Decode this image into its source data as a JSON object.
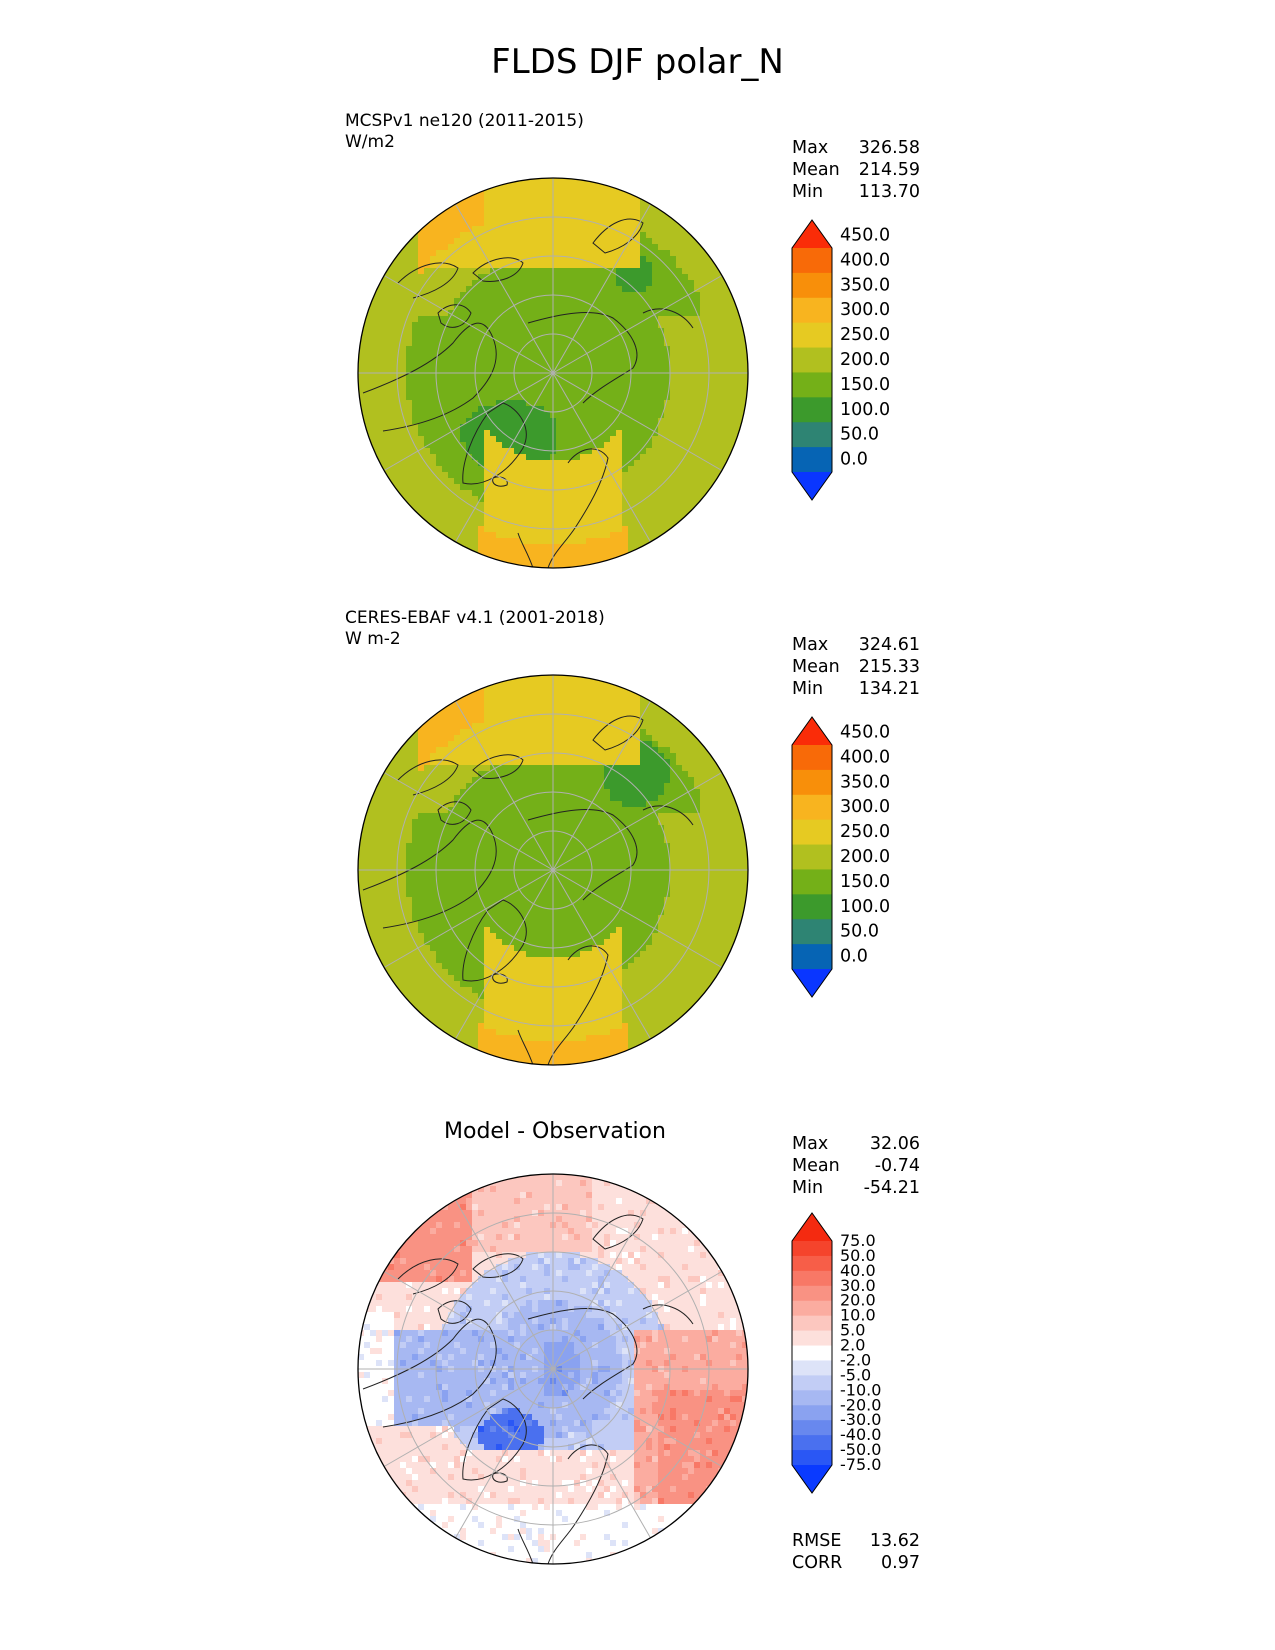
{
  "title": "FLDS DJF polar_N",
  "panels": [
    {
      "id": "test",
      "label": "MCSPv1 ne120 (2011-2015)",
      "units": "W/m2",
      "stats": {
        "max_label": "Max",
        "max": "326.58",
        "mean_label": "Mean",
        "mean": "214.59",
        "min_label": "Min",
        "min": "113.70"
      }
    },
    {
      "id": "ref",
      "label": "CERES-EBAF v4.1 (2001-2018)",
      "units": "W m-2",
      "stats": {
        "max_label": "Max",
        "max": "324.61",
        "mean_label": "Mean",
        "mean": "215.33",
        "min_label": "Min",
        "min": "134.21"
      }
    },
    {
      "id": "diff",
      "label": "Model - Observation",
      "stats": {
        "max_label": "Max",
        "max": "32.06",
        "mean_label": "Mean",
        "mean": "-0.74",
        "min_label": "Min",
        "min": "-54.21"
      },
      "metrics": {
        "rmse_label": "RMSE",
        "rmse": "13.62",
        "corr_label": "CORR",
        "corr": "0.97"
      }
    }
  ],
  "chart_data": [
    {
      "type": "heatmap",
      "projection": "north polar stereographic",
      "panel": "MCSPv1 ne120 (2011-2015)",
      "units": "W/m2",
      "colorbar": {
        "levels": [
          "0.0",
          "50.0",
          "100.0",
          "150.0",
          "200.0",
          "250.0",
          "300.0",
          "350.0",
          "400.0",
          "450.0"
        ],
        "colors": [
          "#0a36ff",
          "#0664b4",
          "#2e8473",
          "#3c9a2c",
          "#74b018",
          "#b1c01f",
          "#e6ca22",
          "#f8b41f",
          "#f88f0a",
          "#f86a08",
          "#fa2c08"
        ],
        "extend": "both"
      },
      "stats": {
        "max": 326.58,
        "mean": 214.59,
        "min": 113.7
      }
    },
    {
      "type": "heatmap",
      "projection": "north polar stereographic",
      "panel": "CERES-EBAF v4.1 (2001-2018)",
      "units": "W m-2",
      "colorbar": {
        "levels": [
          "0.0",
          "50.0",
          "100.0",
          "150.0",
          "200.0",
          "250.0",
          "300.0",
          "350.0",
          "400.0",
          "450.0"
        ],
        "colors": [
          "#0a36ff",
          "#0664b4",
          "#2e8473",
          "#3c9a2c",
          "#74b018",
          "#b1c01f",
          "#e6ca22",
          "#f8b41f",
          "#f88f0a",
          "#f86a08",
          "#fa2c08"
        ],
        "extend": "both"
      },
      "stats": {
        "max": 324.61,
        "mean": 215.33,
        "min": 134.21
      }
    },
    {
      "type": "heatmap",
      "projection": "north polar stereographic",
      "panel": "Model - Observation",
      "colorbar": {
        "levels": [
          "-75.0",
          "-50.0",
          "-40.0",
          "-30.0",
          "-20.0",
          "-10.0",
          "-5.0",
          "-2.0",
          "2.0",
          "5.0",
          "10.0",
          "20.0",
          "30.0",
          "40.0",
          "50.0",
          "75.0"
        ],
        "colors": [
          "#0a3aff",
          "#2a57f5",
          "#4a70ef",
          "#6888ee",
          "#8aa2f0",
          "#a7b8f2",
          "#c2cdf5",
          "#dde3f8",
          "#ffffff",
          "#fde0dc",
          "#fcc7bf",
          "#fbaca0",
          "#f99283",
          "#f87866",
          "#f75e48",
          "#f5442c",
          "#f42a10"
        ],
        "extend": "both"
      },
      "stats": {
        "max": 32.06,
        "mean": -0.74,
        "min": -54.21
      },
      "metrics": {
        "rmse": 13.62,
        "corr": 0.97
      }
    }
  ]
}
